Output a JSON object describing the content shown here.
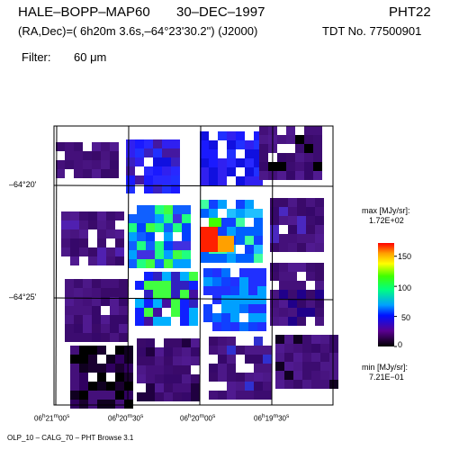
{
  "header": {
    "object": "HALE–BOPP–MAP60",
    "date": "30–DEC–1997",
    "instrument": "PHT22",
    "coords": "(RA,Dec)=( 6h20m 3.6s,–64°23'30.2\") (J2000)",
    "tdt": "TDT No. 77500901",
    "filter_label": "Filter:",
    "filter_value": "60 μm"
  },
  "axes": {
    "dec_labels": [
      "–64°20'",
      "–64°25'"
    ],
    "ra_labels": [
      "06h21m00s",
      "06h20m30s",
      "06h20m00s",
      "06h19m30s"
    ],
    "ra_parts": [
      {
        "h": "06",
        "m": "21",
        "s": "00"
      },
      {
        "h": "06",
        "m": "20",
        "s": "30"
      },
      {
        "h": "06",
        "m": "20",
        "s": "00"
      },
      {
        "h": "06",
        "m": "19",
        "s": "30"
      }
    ]
  },
  "scale": {
    "max_label": "max [MJy/sr]:",
    "max_value": "1.72E+02",
    "min_label": "min [MJy/sr]:",
    "min_value": "7.21E−01",
    "tick_labels": [
      "150",
      "100",
      "50",
      "0"
    ],
    "ticks": [
      150,
      100,
      50,
      0
    ],
    "range": [
      0,
      172
    ]
  },
  "footer": {
    "text": "OLP_10   – CALG_70  – PHT Browse 3.1"
  }
}
